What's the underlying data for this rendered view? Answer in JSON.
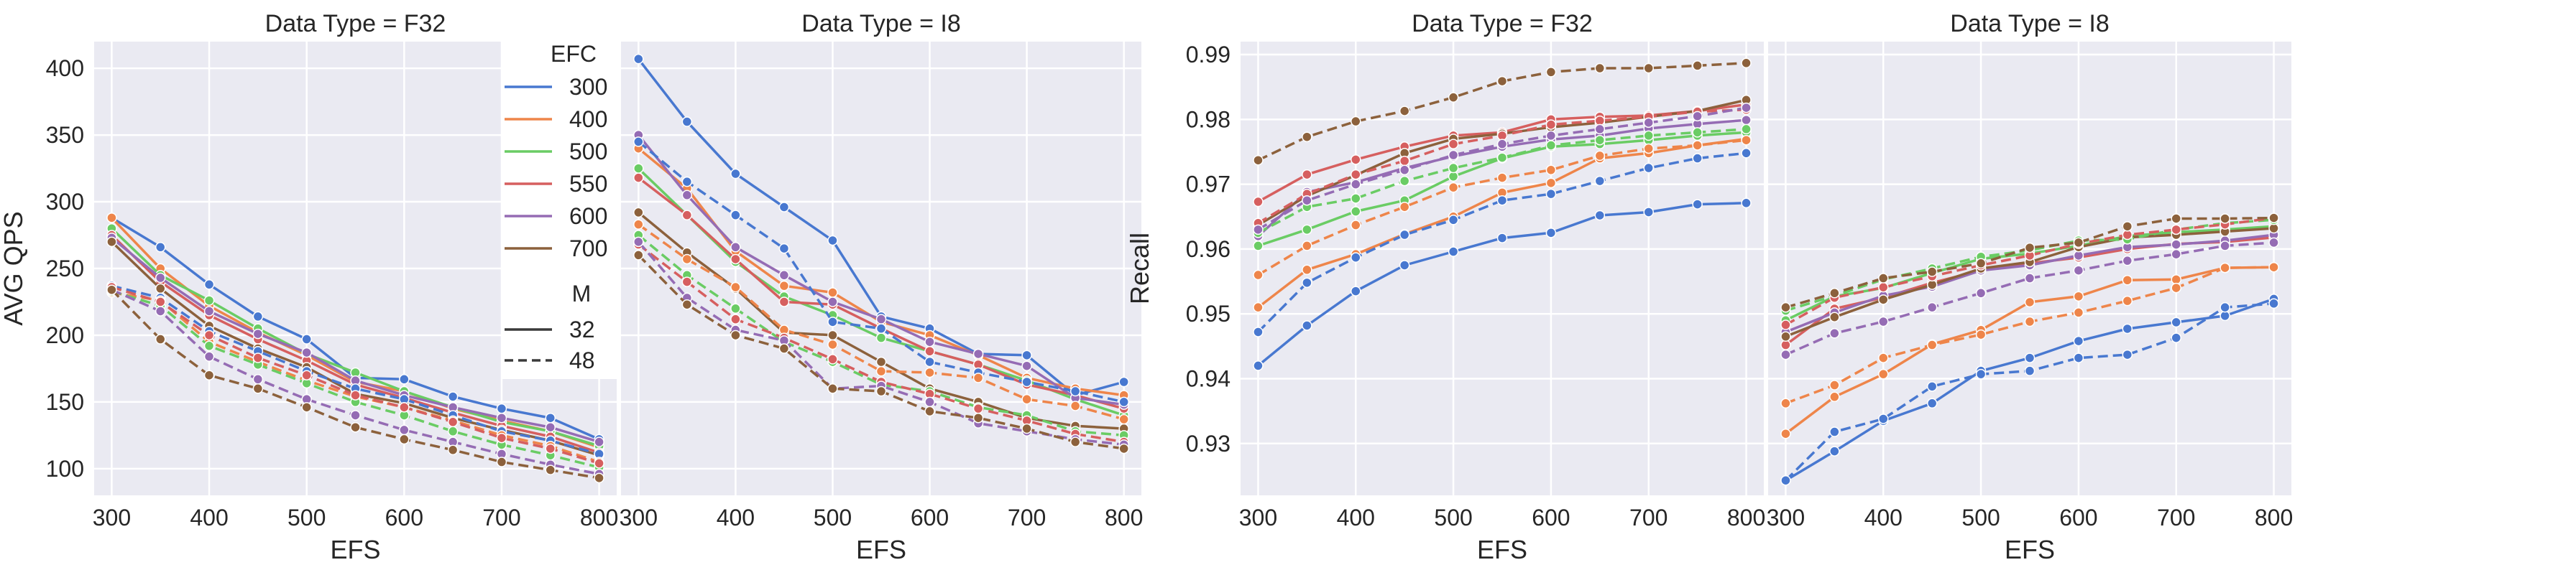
{
  "chart_data": {
    "type": "line",
    "x_values": [
      300,
      350,
      400,
      450,
      500,
      550,
      600,
      650,
      700,
      750,
      800
    ],
    "colors": {
      "300": "#4878d0",
      "400": "#ee854a",
      "500": "#6acc64",
      "550": "#d65f5f",
      "600": "#956cb4",
      "700": "#8c613c"
    },
    "legend": {
      "efc_title": "EFC",
      "efc_entries": [
        "300",
        "400",
        "500",
        "550",
        "600",
        "700"
      ],
      "m_title": "M",
      "m_entries": [
        "32",
        "48"
      ],
      "placement": "top-right of first QPS facet"
    },
    "panels": [
      {
        "id": "qps-f32",
        "title": "Data Type = F32",
        "xlabel": "EFS",
        "ylabel": "AVG QPS",
        "ylim": [
          80,
          420
        ],
        "yticks": [
          100,
          150,
          200,
          250,
          300,
          350,
          400
        ],
        "xticks": [
          300,
          400,
          500,
          600,
          700,
          800
        ],
        "series": [
          {
            "efc": "300",
            "m": "32",
            "values": [
              288,
              266,
              238,
              214,
              197,
              168,
              167,
              154,
              145,
              138,
              122
            ]
          },
          {
            "efc": "400",
            "m": "32",
            "values": [
              288,
              250,
              222,
              202,
              185,
              165,
              158,
              145,
              136,
              128,
              116
            ]
          },
          {
            "efc": "500",
            "m": "32",
            "values": [
              280,
              245,
              226,
              205,
              186,
              172,
              158,
              146,
              135,
              128,
              117
            ]
          },
          {
            "efc": "550",
            "m": "32",
            "values": [
              275,
              240,
              215,
              197,
              181,
              163,
              153,
              142,
              132,
              124,
              112
            ]
          },
          {
            "efc": "600",
            "m": "32",
            "values": [
              273,
              243,
              218,
              201,
              187,
              166,
              155,
              146,
              138,
              131,
              120
            ]
          },
          {
            "efc": "700",
            "m": "32",
            "values": [
              270,
              235,
              207,
              190,
              176,
              156,
              149,
              138,
              129,
              121,
              110
            ]
          },
          {
            "efc": "300",
            "m": "48",
            "values": [
              237,
              228,
              203,
              188,
              173,
              160,
              152,
              140,
              128,
              121,
              111
            ]
          },
          {
            "efc": "400",
            "m": "48",
            "values": [
              232,
              226,
              195,
              180,
              166,
              154,
              146,
              136,
              125,
              117,
              105
            ]
          },
          {
            "efc": "500",
            "m": "48",
            "values": [
              233,
              222,
              192,
              178,
              164,
              150,
              140,
              128,
              118,
              110,
              101
            ]
          },
          {
            "efc": "550",
            "m": "48",
            "values": [
              236,
              225,
              200,
              183,
              170,
              155,
              146,
              135,
              123,
              115,
              104
            ]
          },
          {
            "efc": "600",
            "m": "48",
            "values": [
              234,
              218,
              184,
              167,
              152,
              140,
              129,
              120,
              111,
              103,
              96
            ]
          },
          {
            "efc": "700",
            "m": "48",
            "values": [
              234,
              197,
              170,
              160,
              146,
              131,
              122,
              114,
              105,
              99,
              93
            ]
          }
        ]
      },
      {
        "id": "qps-i8",
        "title": "Data Type = I8",
        "xlabel": "EFS",
        "ylabel": "",
        "ylim": [
          80,
          420
        ],
        "yticks": [],
        "xticks": [
          300,
          400,
          500,
          600,
          700,
          800
        ],
        "series": [
          {
            "efc": "300",
            "m": "32",
            "values": [
              407,
              360,
              321,
              296,
              271,
              214,
              205,
              186,
              185,
              155,
              165
            ]
          },
          {
            "efc": "400",
            "m": "32",
            "values": [
              340,
              310,
              263,
              237,
              232,
              210,
              200,
              185,
              168,
              160,
              155
            ]
          },
          {
            "efc": "500",
            "m": "32",
            "values": [
              325,
              290,
              255,
              229,
              215,
              198,
              188,
              178,
              166,
              152,
              140
            ]
          },
          {
            "efc": "550",
            "m": "32",
            "values": [
              318,
              290,
              257,
              225,
              223,
              205,
              188,
              178,
              163,
              155,
              145
            ]
          },
          {
            "efc": "600",
            "m": "32",
            "values": [
              350,
              305,
              266,
              245,
              225,
              212,
              195,
              186,
              177,
              153,
              148
            ]
          },
          {
            "efc": "700",
            "m": "32",
            "values": [
              292,
              262,
              235,
              202,
              200,
              180,
              160,
              150,
              138,
              132,
              130
            ]
          },
          {
            "efc": "300",
            "m": "48",
            "values": [
              345,
              315,
              290,
              265,
              210,
              205,
              180,
              172,
              165,
              158,
              150
            ]
          },
          {
            "efc": "400",
            "m": "48",
            "values": [
              283,
              257,
              236,
              204,
              193,
              173,
              172,
              168,
              152,
              147,
              137
            ]
          },
          {
            "efc": "500",
            "m": "48",
            "values": [
              275,
              245,
              220,
              195,
              180,
              163,
              158,
              146,
              140,
              128,
              125
            ]
          },
          {
            "efc": "550",
            "m": "48",
            "values": [
              268,
              240,
              212,
              198,
              182,
              165,
              156,
              145,
              136,
              126,
              120
            ]
          },
          {
            "efc": "600",
            "m": "48",
            "values": [
              270,
              228,
              204,
              196,
              160,
              162,
              150,
              134,
              128,
              122,
              118
            ]
          },
          {
            "efc": "700",
            "m": "48",
            "values": [
              260,
              223,
              200,
              190,
              160,
              158,
              143,
              138,
              130,
              120,
              115
            ]
          }
        ]
      },
      {
        "id": "recall-f32",
        "title": "Data Type = F32",
        "xlabel": "EFS",
        "ylabel": "Recall",
        "ylim": [
          0.922,
          0.992
        ],
        "yticks": [
          0.93,
          0.94,
          0.95,
          0.96,
          0.97,
          0.98,
          0.99
        ],
        "xticks": [
          300,
          400,
          500,
          600,
          700,
          800
        ],
        "series": [
          {
            "efc": "300",
            "m": "32",
            "values": [
              0.942,
              0.9482,
              0.9535,
              0.9575,
              0.9596,
              0.9617,
              0.9625,
              0.9652,
              0.9657,
              0.9669,
              0.9671
            ]
          },
          {
            "efc": "400",
            "m": "32",
            "values": [
              0.951,
              0.9568,
              0.9592,
              0.9623,
              0.965,
              0.9687,
              0.9702,
              0.974,
              0.9748,
              0.976,
              0.977
            ]
          },
          {
            "efc": "500",
            "m": "32",
            "values": [
              0.9605,
              0.963,
              0.9658,
              0.9675,
              0.9712,
              0.974,
              0.9758,
              0.9762,
              0.9768,
              0.9775,
              0.978
            ]
          },
          {
            "efc": "550",
            "m": "32",
            "values": [
              0.9673,
              0.9715,
              0.9738,
              0.9758,
              0.9775,
              0.978,
              0.98,
              0.9804,
              0.9806,
              0.9813,
              0.9823
            ]
          },
          {
            "efc": "600",
            "m": "32",
            "values": [
              0.962,
              0.9688,
              0.9703,
              0.9725,
              0.9743,
              0.9758,
              0.9769,
              0.9775,
              0.9786,
              0.9793,
              0.9799
            ]
          },
          {
            "efc": "700",
            "m": "32",
            "values": [
              0.9637,
              0.9682,
              0.9714,
              0.9748,
              0.977,
              0.9778,
              0.9788,
              0.9795,
              0.9804,
              0.9813,
              0.983
            ]
          },
          {
            "efc": "300",
            "m": "48",
            "values": [
              0.9472,
              0.9548,
              0.9587,
              0.9622,
              0.9645,
              0.9675,
              0.9685,
              0.9705,
              0.9725,
              0.974,
              0.9748
            ]
          },
          {
            "efc": "400",
            "m": "48",
            "values": [
              0.956,
              0.9605,
              0.9637,
              0.9665,
              0.9695,
              0.971,
              0.9722,
              0.9744,
              0.9755,
              0.976,
              0.9768
            ]
          },
          {
            "efc": "500",
            "m": "48",
            "values": [
              0.9625,
              0.9665,
              0.9678,
              0.9705,
              0.9725,
              0.9741,
              0.976,
              0.9768,
              0.9775,
              0.978,
              0.9785
            ]
          },
          {
            "efc": "550",
            "m": "48",
            "values": [
              0.964,
              0.9685,
              0.9715,
              0.9736,
              0.9762,
              0.9775,
              0.9792,
              0.9798,
              0.9804,
              0.9812,
              0.9815
            ]
          },
          {
            "efc": "600",
            "m": "48",
            "values": [
              0.963,
              0.9675,
              0.97,
              0.9722,
              0.9745,
              0.9762,
              0.9775,
              0.9785,
              0.9795,
              0.9805,
              0.9818
            ]
          },
          {
            "efc": "700",
            "m": "48",
            "values": [
              0.9737,
              0.9773,
              0.9797,
              0.9813,
              0.9834,
              0.9859,
              0.9873,
              0.9879,
              0.9879,
              0.9883,
              0.9887
            ]
          }
        ]
      },
      {
        "id": "recall-i8",
        "title": "Data Type = I8",
        "xlabel": "EFS",
        "ylabel": "",
        "ylim": [
          0.922,
          0.992
        ],
        "yticks": [],
        "xticks": [
          300,
          400,
          500,
          600,
          700,
          800
        ],
        "series": [
          {
            "efc": "300",
            "m": "32",
            "values": [
              0.9243,
              0.9288,
              0.9335,
              0.9362,
              0.9412,
              0.9432,
              0.9458,
              0.9477,
              0.9487,
              0.9497,
              0.9523
            ]
          },
          {
            "efc": "400",
            "m": "32",
            "values": [
              0.9315,
              0.9372,
              0.9407,
              0.9453,
              0.9475,
              0.9518,
              0.9527,
              0.9552,
              0.9553,
              0.9571,
              0.9572
            ]
          },
          {
            "efc": "500",
            "m": "32",
            "values": [
              0.949,
              0.9527,
              0.954,
              0.9563,
              0.9585,
              0.9593,
              0.9605,
              0.962,
              0.9626,
              0.963,
              0.9635
            ]
          },
          {
            "efc": "550",
            "m": "32",
            "values": [
              0.9452,
              0.9508,
              0.9525,
              0.9548,
              0.9567,
              0.9578,
              0.9587,
              0.96,
              0.9608,
              0.9611,
              0.9618
            ]
          },
          {
            "efc": "600",
            "m": "32",
            "values": [
              0.9472,
              0.9502,
              0.9528,
              0.9542,
              0.9567,
              0.9575,
              0.959,
              0.9603,
              0.9607,
              0.9613,
              0.9622
            ]
          },
          {
            "efc": "700",
            "m": "32",
            "values": [
              0.9465,
              0.9495,
              0.9522,
              0.9545,
              0.957,
              0.958,
              0.9603,
              0.9618,
              0.9622,
              0.9627,
              0.9632
            ]
          },
          {
            "efc": "300",
            "m": "48",
            "values": [
              0.9243,
              0.9318,
              0.9338,
              0.9388,
              0.9407,
              0.9412,
              0.9432,
              0.9437,
              0.9463,
              0.951,
              0.9516
            ]
          },
          {
            "efc": "400",
            "m": "48",
            "values": [
              0.9362,
              0.939,
              0.9432,
              0.9452,
              0.9468,
              0.9488,
              0.9502,
              0.952,
              0.954,
              0.9571,
              0.9572
            ]
          },
          {
            "efc": "500",
            "m": "48",
            "values": [
              0.9505,
              0.9528,
              0.9553,
              0.957,
              0.9588,
              0.9598,
              0.9613,
              0.9615,
              0.963,
              0.964,
              0.9645
            ]
          },
          {
            "efc": "550",
            "m": "48",
            "values": [
              0.9483,
              0.9525,
              0.9541,
              0.9558,
              0.9575,
              0.959,
              0.9608,
              0.9622,
              0.963,
              0.9638,
              0.9648
            ]
          },
          {
            "efc": "600",
            "m": "48",
            "values": [
              0.9437,
              0.947,
              0.9488,
              0.951,
              0.9532,
              0.9555,
              0.9567,
              0.9582,
              0.9592,
              0.9605,
              0.961
            ]
          },
          {
            "efc": "700",
            "m": "48",
            "values": [
              0.951,
              0.9532,
              0.9555,
              0.9565,
              0.9578,
              0.9602,
              0.961,
              0.9635,
              0.9647,
              0.9647,
              0.9648
            ]
          }
        ]
      }
    ]
  }
}
